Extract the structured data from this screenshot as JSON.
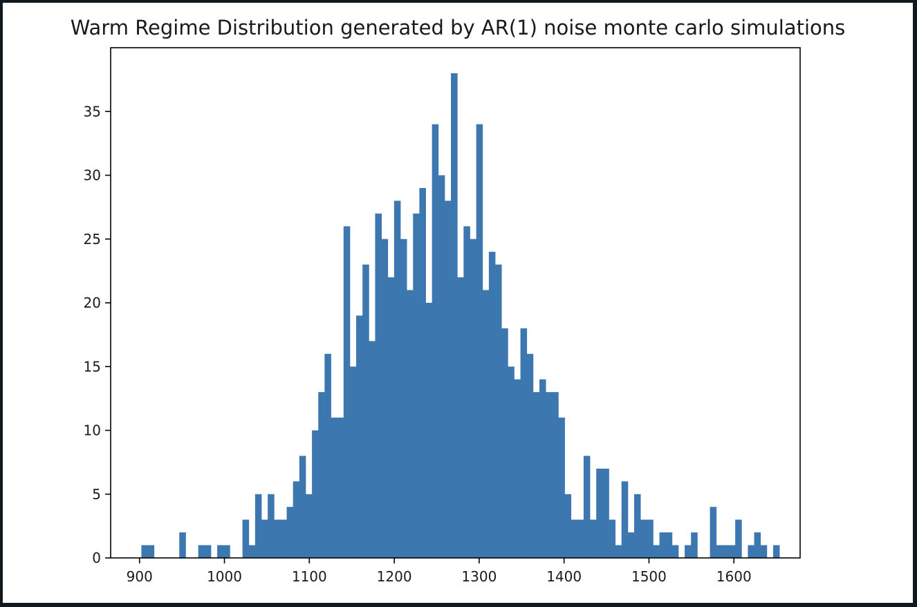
{
  "chart_data": {
    "type": "bar",
    "subtype": "histogram",
    "title": "Warm Regime Distribution generated by AR(1) noise monte carlo simulations",
    "xlabel": "",
    "ylabel": "",
    "color": "#3d77b0",
    "xlim": [
      866,
      1678
    ],
    "ylim": [
      0,
      40
    ],
    "xticks": [
      900,
      1000,
      1100,
      1200,
      1300,
      1400,
      1500,
      1600
    ],
    "yticks": [
      0,
      5,
      10,
      15,
      20,
      25,
      30,
      35
    ],
    "grid": false,
    "legend": null,
    "bin_start": 902.2,
    "bin_width": 7.44,
    "counts": [
      1,
      1,
      0,
      0,
      0,
      0,
      2,
      0,
      0,
      1,
      1,
      0,
      1,
      1,
      0,
      0,
      3,
      1,
      5,
      3,
      5,
      3,
      3,
      4,
      6,
      8,
      5,
      10,
      13,
      16,
      11,
      11,
      26,
      15,
      19,
      23,
      17,
      27,
      25,
      22,
      28,
      25,
      21,
      27,
      29,
      20,
      34,
      30,
      28,
      38,
      22,
      26,
      25,
      34,
      21,
      24,
      23,
      18,
      15,
      14,
      18,
      16,
      13,
      14,
      13,
      13,
      11,
      5,
      3,
      3,
      8,
      3,
      7,
      7,
      3,
      1,
      6,
      2,
      5,
      3,
      3,
      1,
      2,
      2,
      1,
      0,
      1,
      2,
      0,
      0,
      4,
      1,
      1,
      1,
      3,
      0,
      1,
      2,
      1,
      0,
      1
    ]
  }
}
